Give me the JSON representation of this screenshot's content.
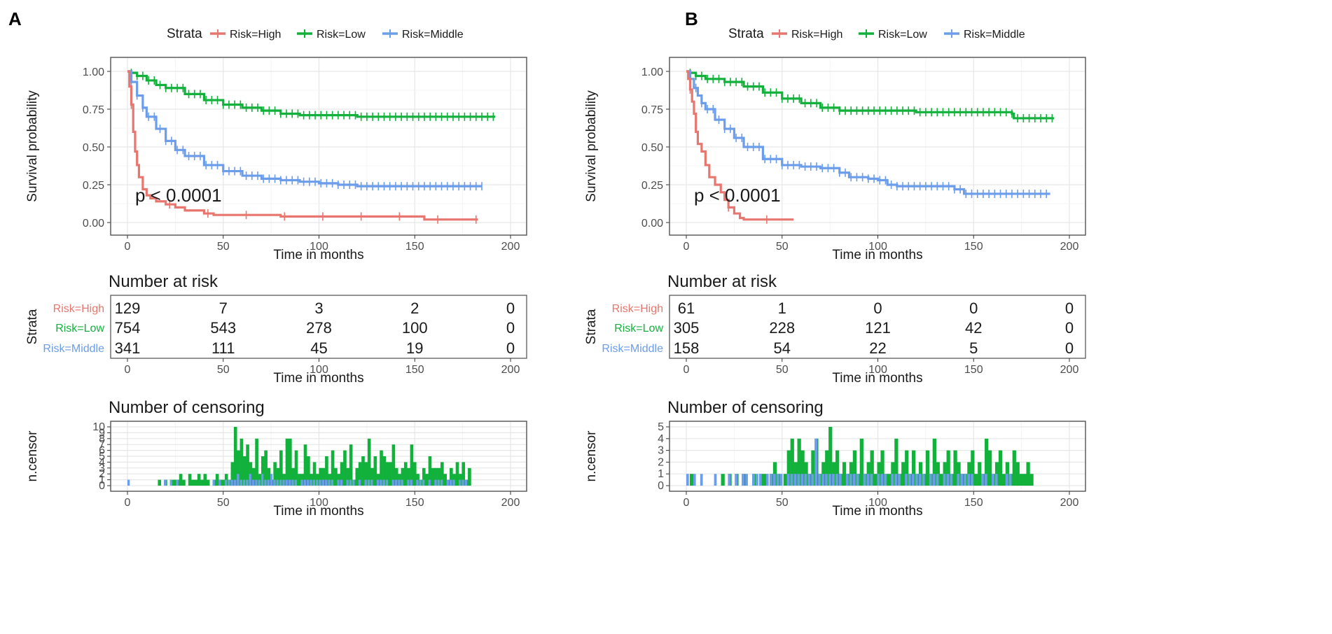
{
  "chart_data": [
    {
      "panel": "A",
      "type": "line",
      "legend": {
        "title": "Strata",
        "entries": [
          "Risk=High",
          "Risk=Low",
          "Risk=Middle"
        ]
      },
      "colors": {
        "Risk=High": "#E8766E",
        "Risk=Low": "#12B13C",
        "Risk=Middle": "#6B9DEB"
      },
      "survival": {
        "xlabel": "Time in months",
        "ylabel": "Survival probability",
        "xlim": [
          0,
          200
        ],
        "ylim": [
          0,
          1
        ],
        "xticks": [
          "0",
          "50",
          "100",
          "150",
          "200"
        ],
        "yticks": [
          "0.00",
          "0.25",
          "0.50",
          "0.75",
          "1.00"
        ],
        "pvalue": "p < 0.0001",
        "series": [
          {
            "name": "Risk=High",
            "x": [
              0,
              1,
              2,
              3,
              4,
              5,
              6,
              8,
              10,
              12,
              15,
              20,
              25,
              30,
              40,
              45,
              50,
              60,
              80,
              100,
              130,
              155,
              183
            ],
            "values": [
              1.0,
              0.9,
              0.78,
              0.6,
              0.47,
              0.38,
              0.3,
              0.22,
              0.18,
              0.16,
              0.14,
              0.12,
              0.1,
              0.08,
              0.06,
              0.05,
              0.05,
              0.05,
              0.04,
              0.04,
              0.04,
              0.02,
              0.02
            ]
          },
          {
            "name": "Risk=Low",
            "x": [
              0,
              2,
              5,
              10,
              15,
              20,
              30,
              40,
              50,
              60,
              70,
              80,
              90,
              100,
              120,
              140,
              160,
              180,
              192
            ],
            "values": [
              1.0,
              0.99,
              0.97,
              0.94,
              0.91,
              0.89,
              0.85,
              0.81,
              0.78,
              0.76,
              0.74,
              0.72,
              0.71,
              0.71,
              0.7,
              0.7,
              0.7,
              0.7,
              0.7
            ]
          },
          {
            "name": "Risk=Middle",
            "x": [
              0,
              2,
              5,
              8,
              10,
              15,
              20,
              25,
              30,
              40,
              50,
              60,
              70,
              80,
              90,
              100,
              110,
              120,
              140,
              160,
              185
            ],
            "values": [
              1.0,
              0.93,
              0.84,
              0.76,
              0.7,
              0.62,
              0.54,
              0.48,
              0.44,
              0.38,
              0.34,
              0.31,
              0.29,
              0.28,
              0.27,
              0.26,
              0.25,
              0.24,
              0.24,
              0.24,
              0.24
            ]
          }
        ]
      },
      "risk_table": {
        "title": "Number at risk",
        "ylabel": "Strata",
        "xlabel": "Time in months",
        "times": [
          "0",
          "50",
          "100",
          "150",
          "200"
        ],
        "rows": [
          {
            "name": "Risk=High",
            "values": [
              "129",
              "7",
              "3",
              "2",
              "0"
            ]
          },
          {
            "name": "Risk=Low",
            "values": [
              "754",
              "543",
              "278",
              "100",
              "0"
            ]
          },
          {
            "name": "Risk=Middle",
            "values": [
              "341",
              "111",
              "45",
              "19",
              "0"
            ]
          }
        ]
      },
      "censoring": {
        "title": "Number of censoring",
        "ylabel": "n.censor",
        "xlabel": "Time in months",
        "ylim": [
          0,
          10
        ],
        "yticks": [
          "0",
          "1",
          "2",
          "3",
          "4",
          "5",
          "6",
          "7",
          "8",
          "9",
          "10"
        ],
        "low": [
          0,
          0,
          0,
          0,
          0,
          0,
          0,
          0,
          0,
          0,
          1,
          0,
          1,
          0,
          1,
          1,
          1,
          2,
          1,
          0,
          2,
          1,
          1,
          2,
          1,
          2,
          1,
          0,
          1,
          2,
          1,
          1,
          2,
          1,
          4,
          10,
          6,
          8,
          5,
          7,
          4,
          3,
          8,
          2,
          5,
          6,
          3,
          1,
          4,
          3,
          6,
          2,
          8,
          8,
          3,
          6,
          2,
          2,
          7,
          5,
          2,
          4,
          2,
          3,
          3,
          5,
          2,
          6,
          3,
          2,
          4,
          6,
          3,
          7,
          1,
          3,
          4,
          5,
          4,
          8,
          3,
          5,
          2,
          6,
          5,
          4,
          4,
          7,
          3,
          2,
          3,
          4,
          3,
          7,
          4,
          2,
          1,
          3,
          2,
          5,
          3,
          3,
          3,
          4,
          2,
          1,
          3,
          2,
          4,
          2,
          4,
          1,
          3,
          0,
          0,
          0,
          0,
          0,
          0,
          0,
          0
        ],
        "middle": [
          1,
          0,
          0,
          0,
          0,
          0,
          0,
          0,
          0,
          0,
          0,
          0,
          1,
          0,
          1,
          0,
          1,
          0,
          0,
          0,
          0,
          0,
          0,
          0,
          0,
          0,
          0,
          0,
          1,
          0,
          1,
          0,
          1,
          1,
          1,
          1,
          2,
          1,
          1,
          1,
          2,
          1,
          1,
          1,
          2,
          1,
          1,
          2,
          1,
          1,
          1,
          1,
          1,
          1,
          1,
          1,
          0,
          1,
          1,
          1,
          1,
          1,
          1,
          1,
          1,
          1,
          1,
          1,
          0,
          1,
          1,
          0,
          1,
          1,
          1,
          0,
          1,
          0,
          1,
          1,
          1,
          0,
          1,
          1,
          1,
          1,
          0,
          1,
          1,
          1,
          1,
          0,
          1,
          1,
          0,
          1,
          1,
          1,
          0,
          1,
          0,
          1,
          1,
          1,
          0,
          1,
          1,
          1,
          0,
          1,
          1,
          1,
          0,
          0,
          0,
          0,
          0,
          0,
          0,
          0,
          0
        ]
      }
    },
    {
      "panel": "B",
      "type": "line",
      "legend": {
        "title": "Strata",
        "entries": [
          "Risk=High",
          "Risk=Low",
          "Risk=Middle"
        ]
      },
      "colors": {
        "Risk=High": "#E8766E",
        "Risk=Low": "#12B13C",
        "Risk=Middle": "#6B9DEB"
      },
      "survival": {
        "xlabel": "Time in months",
        "ylabel": "Survival probability",
        "xlim": [
          0,
          200
        ],
        "ylim": [
          0,
          1
        ],
        "xticks": [
          "0",
          "50",
          "100",
          "150",
          "200"
        ],
        "yticks": [
          "0.00",
          "0.25",
          "0.50",
          "0.75",
          "1.00"
        ],
        "pvalue": "p < 0.0001",
        "series": [
          {
            "name": "Risk=High",
            "x": [
              0,
              1,
              2,
              3,
              4,
              5,
              6,
              8,
              10,
              12,
              15,
              18,
              20,
              22,
              25,
              28,
              30,
              40,
              56
            ],
            "values": [
              1.0,
              0.95,
              0.88,
              0.8,
              0.72,
              0.6,
              0.52,
              0.47,
              0.38,
              0.3,
              0.25,
              0.2,
              0.15,
              0.1,
              0.06,
              0.03,
              0.02,
              0.02,
              0.02
            ]
          },
          {
            "name": "Risk=Low",
            "x": [
              0,
              2,
              5,
              10,
              20,
              30,
              40,
              50,
              60,
              70,
              80,
              90,
              100,
              120,
              140,
              160,
              170,
              171,
              180,
              192
            ],
            "values": [
              1.0,
              0.99,
              0.97,
              0.95,
              0.93,
              0.9,
              0.86,
              0.82,
              0.79,
              0.76,
              0.74,
              0.74,
              0.74,
              0.73,
              0.73,
              0.73,
              0.72,
              0.69,
              0.69,
              0.69
            ]
          },
          {
            "name": "Risk=Middle",
            "x": [
              0,
              2,
              4,
              6,
              8,
              10,
              15,
              20,
              25,
              30,
              40,
              50,
              60,
              70,
              80,
              85,
              90,
              95,
              100,
              105,
              110,
              120,
              140,
              145,
              150,
              170,
              190
            ],
            "values": [
              1.0,
              0.95,
              0.89,
              0.84,
              0.79,
              0.75,
              0.68,
              0.62,
              0.56,
              0.5,
              0.42,
              0.38,
              0.37,
              0.36,
              0.33,
              0.3,
              0.3,
              0.29,
              0.28,
              0.25,
              0.24,
              0.24,
              0.22,
              0.19,
              0.19,
              0.19,
              0.19
            ]
          }
        ]
      },
      "risk_table": {
        "title": "Number at risk",
        "ylabel": "Strata",
        "xlabel": "Time in months",
        "times": [
          "0",
          "50",
          "100",
          "150",
          "200"
        ],
        "rows": [
          {
            "name": "Risk=High",
            "values": [
              "61",
              "1",
              "0",
              "0",
              "0"
            ]
          },
          {
            "name": "Risk=Low",
            "values": [
              "305",
              "228",
              "121",
              "42",
              "0"
            ]
          },
          {
            "name": "Risk=Middle",
            "values": [
              "158",
              "54",
              "22",
              "5",
              "0"
            ]
          }
        ]
      },
      "censoring": {
        "title": "Number of censoring",
        "ylabel": "n.censor",
        "xlabel": "Time in months",
        "ylim": [
          0,
          5
        ],
        "yticks": [
          "0",
          "1",
          "2",
          "3",
          "4",
          "5"
        ],
        "low": [
          0,
          1,
          0,
          0,
          0,
          0,
          0,
          0,
          0,
          0,
          1,
          0,
          1,
          0,
          1,
          0,
          1,
          0,
          0,
          1,
          0,
          1,
          1,
          0,
          1,
          2,
          1,
          0,
          1,
          3,
          4,
          2,
          4,
          3,
          2,
          1,
          3,
          4,
          1,
          2,
          3,
          5,
          2,
          3,
          1,
          2,
          1,
          2,
          3,
          1,
          4,
          1,
          2,
          3,
          1,
          2,
          3,
          1,
          1,
          2,
          4,
          1,
          2,
          3,
          1,
          3,
          1,
          2,
          1,
          3,
          1,
          4,
          2,
          1,
          2,
          3,
          1,
          3,
          2,
          1,
          1,
          2,
          3,
          1,
          2,
          1,
          4,
          3,
          1,
          2,
          3,
          1,
          2,
          1,
          3,
          2,
          1,
          1,
          2,
          1,
          0,
          0,
          0,
          0,
          0,
          0
        ],
        "middle": [
          1,
          0,
          1,
          0,
          1,
          0,
          0,
          0,
          1,
          0,
          0,
          0,
          1,
          0,
          1,
          0,
          1,
          1,
          0,
          1,
          1,
          1,
          0,
          1,
          1,
          1,
          1,
          1,
          0,
          1,
          1,
          1,
          1,
          1,
          1,
          1,
          1,
          4,
          1,
          1,
          1,
          1,
          1,
          1,
          1,
          0,
          1,
          1,
          1,
          1,
          0,
          1,
          1,
          1,
          0,
          1,
          1,
          1,
          0,
          1,
          1,
          1,
          0,
          1,
          1,
          1,
          1,
          1,
          1,
          0,
          1,
          1,
          1,
          0,
          1,
          1,
          1,
          0,
          1,
          1,
          1,
          1,
          1,
          0,
          0,
          1,
          1,
          0,
          1,
          1,
          0,
          0,
          1,
          1,
          0,
          0,
          0,
          0,
          0,
          0,
          0,
          0,
          0,
          0,
          0,
          0
        ]
      }
    }
  ]
}
